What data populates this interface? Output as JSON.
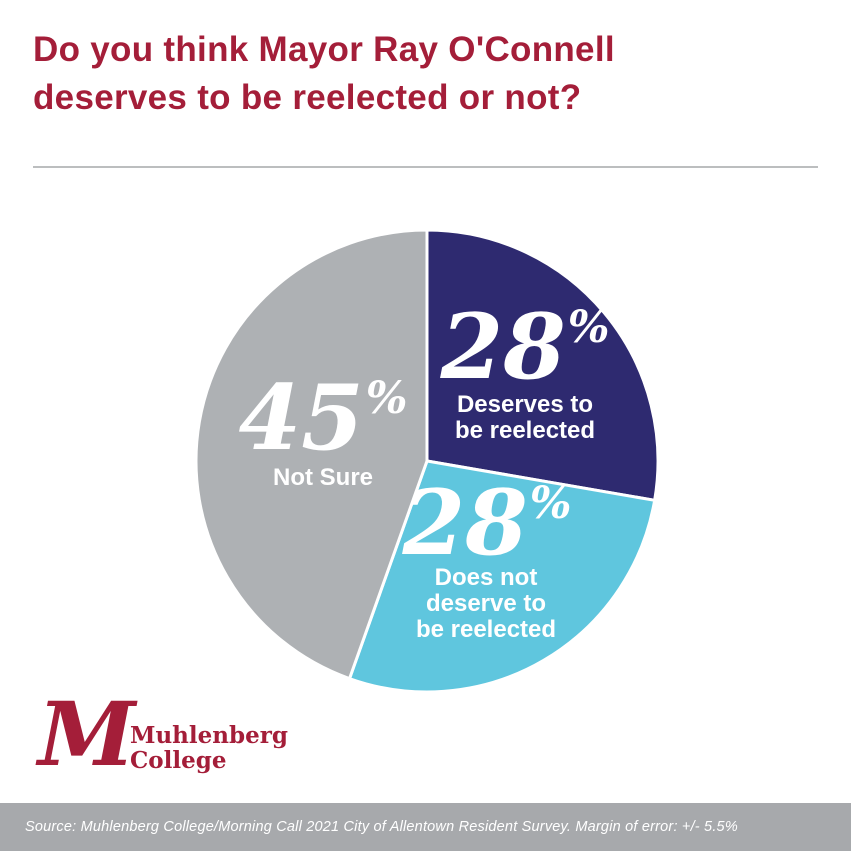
{
  "title": {
    "text": "Do you think Mayor Ray O'Connell deserves to be reelected or not?",
    "lines": [
      "Do you think Mayor Ray O'Connell",
      "deserves to be reelected or not?"
    ]
  },
  "colors": {
    "brand_red": "#A41E39",
    "navy": "#2E2A70",
    "cyan": "#5FC6DE",
    "gray": "#AEB1B4",
    "footer_bg": "#A7A9AC",
    "divider": "#BCBEBF",
    "slice_text": "#FFFFFF"
  },
  "chart_data": {
    "type": "pie",
    "title": "Do you think Mayor Ray O'Connell deserves to be reelected or not?",
    "start_angle_deg": 0,
    "direction": "clockwise",
    "legend_position": "labels-inside-slices",
    "slices": [
      {
        "id": "deserves",
        "label": "Deserves to be reelected",
        "label_lines": [
          "Deserves to",
          "be reelected"
        ],
        "value": 28,
        "display": "28",
        "unit": "%",
        "color": "#2E2A70",
        "text_color": "#FFFFFF"
      },
      {
        "id": "does-not-deserve",
        "label": "Does not deserve to be reelected",
        "label_lines": [
          "Does not",
          "deserve to",
          "be reelected"
        ],
        "value": 28,
        "display": "28",
        "unit": "%",
        "color": "#5FC6DE",
        "text_color": "#FFFFFF"
      },
      {
        "id": "not-sure",
        "label": "Not Sure",
        "label_lines": [
          "Not Sure"
        ],
        "value": 45,
        "display": "45",
        "unit": "%",
        "color": "#AEB1B4",
        "text_color": "#FFFFFF"
      }
    ]
  },
  "logo": {
    "monogram": "M",
    "name": "Muhlenberg College",
    "name_lines": [
      "Muhlenberg",
      "College"
    ]
  },
  "footer": {
    "source_text": "Source: Muhlenberg College/Morning Call 2021 City of Allentown Resident Survey. Margin of error: +/- 5.5%"
  }
}
